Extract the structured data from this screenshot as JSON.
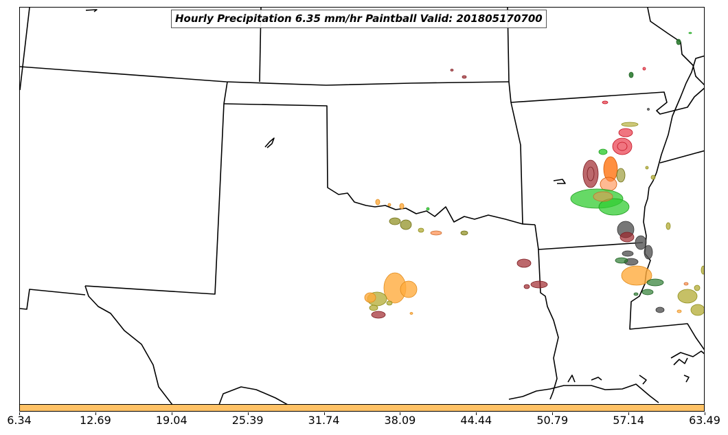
{
  "title": "Hourly Precipitation 6.35 mm/hr Paintball Valid: 201805170700",
  "colorbar": {
    "color": "#ffc266",
    "ticks": [
      "6.34",
      "12.69",
      "19.04",
      "25.39",
      "31.74",
      "38.09",
      "44.44",
      "50.79",
      "57.14",
      "63.49"
    ]
  },
  "colors": {
    "red": "#e6192b",
    "orange": "#ff6a00",
    "light_orange": "#ffab3d",
    "salmon": "#ff8c4a",
    "green": "#33cc33",
    "dark_green": "#2e7d32",
    "olive": "#8c8c1a",
    "khaki": "#b8b040",
    "maroon": "#a0282d",
    "gray": "#555555"
  }
}
